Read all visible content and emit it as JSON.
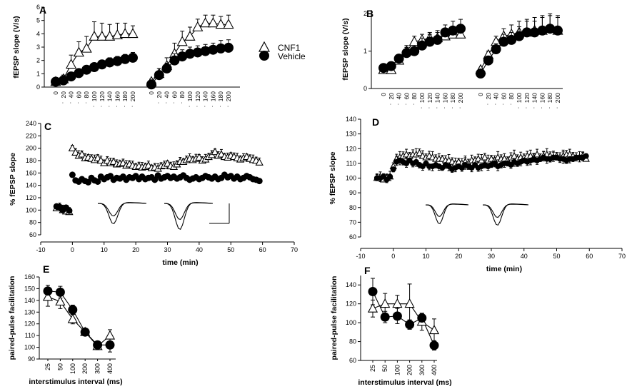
{
  "figure": {
    "legend": {
      "cnf1": "CNF1",
      "vehicle": "Vehicle"
    }
  },
  "chart_data": [
    {
      "panel": "A",
      "type": "line",
      "ylabel": "fEPSP slope (V/s)",
      "ylim": [
        0,
        6
      ],
      "yticks": [
        0,
        1,
        2,
        3,
        4,
        5,
        6
      ],
      "x_ticklabels": [
        "0",
        "20",
        "40",
        "60",
        "80",
        "100",
        "120",
        "140",
        "160",
        "180",
        "200"
      ],
      "groups": [
        {
          "series": [
            {
              "name": "CNF1",
              "values": [
                0.4,
                0.6,
                1.7,
                2.6,
                2.9,
                3.8,
                3.8,
                3.8,
                3.9,
                4.0,
                4.0
              ],
              "errors": [
                0.15,
                0.3,
                0.7,
                0.8,
                0.9,
                1.1,
                1.0,
                0.9,
                0.9,
                0.8,
                0.6
              ]
            },
            {
              "name": "Vehicle",
              "values": [
                0.4,
                0.5,
                0.8,
                1.05,
                1.3,
                1.5,
                1.7,
                1.85,
                1.95,
                2.1,
                2.2
              ],
              "errors": [
                0.1,
                0.15,
                0.2,
                0.25,
                0.3,
                0.3,
                0.3,
                0.35,
                0.35,
                0.35,
                0.4
              ]
            }
          ]
        },
        {
          "series": [
            {
              "name": "CNF1",
              "values": [
                0.4,
                1.0,
                1.6,
                2.5,
                3.4,
                3.8,
                4.5,
                4.8,
                4.8,
                4.7,
                4.7
              ],
              "errors": [
                0.2,
                0.4,
                0.6,
                0.8,
                0.8,
                0.7,
                0.6,
                0.6,
                0.6,
                0.6,
                0.7
              ]
            },
            {
              "name": "Vehicle",
              "values": [
                0.2,
                0.9,
                1.4,
                2.0,
                2.3,
                2.5,
                2.6,
                2.7,
                2.8,
                2.9,
                2.95
              ],
              "errors": [
                0.1,
                0.3,
                0.4,
                0.5,
                0.5,
                0.5,
                0.5,
                0.5,
                0.5,
                0.6,
                0.6
              ]
            }
          ]
        }
      ]
    },
    {
      "panel": "B",
      "type": "line",
      "ylabel": "fEPSP slope (V/s)",
      "ylim": [
        0,
        2.1
      ],
      "yticks": [
        0,
        1,
        2
      ],
      "x_ticklabels": [
        "0",
        "20",
        "40",
        "60",
        "80",
        "100",
        "120",
        "140",
        "160",
        "180",
        "200"
      ],
      "groups": [
        {
          "series": [
            {
              "name": "CNF1",
              "values": [
                0.5,
                0.5,
                0.75,
                1.0,
                1.25,
                1.3,
                1.35,
                1.35,
                1.4,
                1.45,
                1.45
              ],
              "errors": [
                0.05,
                0.1,
                0.1,
                0.15,
                0.15,
                0.15,
                0.15,
                0.2,
                0.2,
                0.2,
                0.2
              ]
            },
            {
              "name": "Vehicle",
              "values": [
                0.55,
                0.6,
                0.8,
                0.95,
                1.0,
                1.15,
                1.25,
                1.3,
                1.5,
                1.55,
                1.6
              ],
              "errors": [
                0.05,
                0.1,
                0.1,
                0.15,
                0.15,
                0.2,
                0.2,
                0.2,
                0.2,
                0.25,
                0.25
              ]
            }
          ]
        },
        {
          "series": [
            {
              "name": "CNF1",
              "values": [
                0.5,
                0.9,
                1.25,
                1.4,
                1.45,
                1.5,
                1.5,
                1.55,
                1.55,
                1.6,
                1.55
              ],
              "errors": [
                0.05,
                0.1,
                0.15,
                0.2,
                0.25,
                0.3,
                0.35,
                0.35,
                0.4,
                0.4,
                0.4
              ]
            },
            {
              "name": "Vehicle",
              "values": [
                0.4,
                0.75,
                1.05,
                1.25,
                1.3,
                1.4,
                1.5,
                1.5,
                1.55,
                1.6,
                1.55
              ],
              "errors": [
                0.05,
                0.1,
                0.15,
                0.2,
                0.2,
                0.25,
                0.3,
                0.3,
                0.35,
                0.35,
                0.35
              ]
            }
          ]
        }
      ]
    },
    {
      "panel": "C",
      "type": "scatter",
      "xlabel": "time (min)",
      "ylabel": "% fEPSP slope",
      "xlim": [
        -10,
        70
      ],
      "xticks": [
        -10,
        0,
        10,
        20,
        30,
        40,
        50,
        60,
        70
      ],
      "ylim": [
        60,
        240
      ],
      "yticks": [
        60,
        80,
        100,
        120,
        140,
        160,
        180,
        200,
        220,
        240
      ],
      "series": [
        {
          "name": "CNF1",
          "x": [
            -5,
            -4,
            -3,
            -2,
            -1,
            0,
            1,
            2,
            3,
            4,
            5,
            6,
            7,
            8,
            9,
            10,
            11,
            12,
            13,
            14,
            15,
            16,
            17,
            18,
            19,
            20,
            21,
            22,
            23,
            24,
            25,
            26,
            27,
            28,
            29,
            30,
            31,
            32,
            33,
            34,
            35,
            36,
            37,
            38,
            39,
            40,
            41,
            42,
            43,
            44,
            45,
            46,
            47,
            48,
            49,
            50,
            51,
            52,
            53,
            54,
            55,
            56,
            57,
            58,
            59
          ],
          "y": [
            103,
            105,
            100,
            98,
            97,
            200,
            193,
            188,
            190,
            184,
            185,
            183,
            181,
            184,
            180,
            176,
            180,
            176,
            178,
            174,
            175,
            176,
            172,
            174,
            172,
            170,
            171,
            169,
            170,
            172,
            168,
            169,
            167,
            171,
            172,
            175,
            171,
            170,
            174,
            178,
            178,
            181,
            183,
            181,
            183,
            185,
            180,
            182,
            186,
            189,
            194,
            188,
            190,
            186,
            185,
            188,
            186,
            184,
            182,
            184,
            186,
            183,
            181,
            180,
            177
          ],
          "err": 8
        },
        {
          "name": "Vehicle",
          "x": [
            -5,
            -4,
            -3,
            -2,
            -1,
            0,
            1,
            2,
            3,
            4,
            5,
            6,
            7,
            8,
            9,
            10,
            11,
            12,
            13,
            14,
            15,
            16,
            17,
            18,
            19,
            20,
            21,
            22,
            23,
            24,
            25,
            26,
            27,
            28,
            29,
            30,
            31,
            32,
            33,
            34,
            35,
            36,
            37,
            38,
            39,
            40,
            41,
            42,
            43,
            44,
            45,
            46,
            47,
            48,
            49,
            50,
            51,
            52,
            53,
            54,
            55,
            56,
            57,
            58,
            59
          ],
          "y": [
            106,
            105,
            100,
            104,
            99,
            157,
            148,
            146,
            150,
            147,
            145,
            152,
            148,
            146,
            154,
            150,
            153,
            155,
            149,
            152,
            151,
            154,
            149,
            153,
            152,
            155,
            150,
            154,
            150,
            152,
            153,
            149,
            156,
            151,
            153,
            155,
            152,
            154,
            151,
            153,
            156,
            152,
            149,
            151,
            153,
            150,
            152,
            155,
            153,
            151,
            154,
            150,
            152,
            157,
            153,
            155,
            151,
            154,
            150,
            152,
            155,
            153,
            150,
            149,
            147
          ],
          "err": 5
        }
      ]
    },
    {
      "panel": "D",
      "type": "scatter",
      "xlabel": "time (min)",
      "ylabel": "% fEPSP slope",
      "xlim": [
        -10,
        70
      ],
      "xticks": [
        -10,
        0,
        10,
        20,
        30,
        40,
        50,
        60,
        70
      ],
      "ylim": [
        60,
        140
      ],
      "yticks": [
        60,
        70,
        80,
        90,
        100,
        110,
        120,
        130,
        140
      ],
      "series": [
        {
          "name": "CNF1",
          "x": [
            -5,
            -4,
            -3,
            -2,
            -1,
            0,
            1,
            2,
            3,
            4,
            5,
            6,
            7,
            8,
            9,
            10,
            11,
            12,
            13,
            14,
            15,
            16,
            17,
            18,
            19,
            20,
            21,
            22,
            23,
            24,
            25,
            26,
            27,
            28,
            29,
            30,
            31,
            32,
            33,
            34,
            35,
            36,
            37,
            38,
            39,
            40,
            41,
            42,
            43,
            44,
            45,
            46,
            47,
            48,
            49,
            50,
            51,
            52,
            53,
            54,
            55,
            56,
            57,
            58,
            59
          ],
          "y": [
            100,
            101,
            99,
            100,
            101,
            108,
            113,
            114,
            115,
            116,
            115,
            116,
            116,
            117,
            115,
            114,
            115,
            114,
            113,
            113,
            113,
            112,
            112,
            111,
            110,
            111,
            110,
            111,
            110,
            112,
            112,
            113,
            112,
            114,
            112,
            113,
            112,
            114,
            113,
            113,
            112,
            114,
            115,
            113,
            114,
            114,
            115,
            115,
            114,
            116,
            114,
            115,
            116,
            115,
            114,
            115,
            114,
            115,
            116,
            116,
            115,
            114,
            114,
            115,
            113
          ],
          "err": 4
        },
        {
          "name": "Vehicle",
          "x": [
            -5,
            -4,
            -3,
            -2,
            -1,
            0,
            1,
            2,
            3,
            4,
            5,
            6,
            7,
            8,
            9,
            10,
            11,
            12,
            13,
            14,
            15,
            16,
            17,
            18,
            19,
            20,
            21,
            22,
            23,
            24,
            25,
            26,
            27,
            28,
            29,
            30,
            31,
            32,
            33,
            34,
            35,
            36,
            37,
            38,
            39,
            40,
            41,
            42,
            43,
            44,
            45,
            46,
            47,
            48,
            49,
            50,
            51,
            52,
            53,
            54,
            55,
            56,
            57,
            58,
            59
          ],
          "y": [
            100,
            100,
            101,
            99,
            101,
            106,
            111,
            112,
            111,
            110,
            112,
            110,
            111,
            109,
            108,
            110,
            108,
            108,
            109,
            108,
            107,
            109,
            108,
            106,
            107,
            108,
            107,
            109,
            108,
            107,
            109,
            107,
            108,
            109,
            108,
            109,
            110,
            108,
            109,
            110,
            110,
            109,
            111,
            110,
            111,
            112,
            111,
            112,
            113,
            112,
            113,
            114,
            113,
            113,
            114,
            114,
            113,
            113,
            112,
            113,
            113,
            114,
            114,
            114,
            115
          ],
          "err": 6
        }
      ]
    },
    {
      "panel": "E",
      "type": "line",
      "xlabel": "interstimulus interval (ms)",
      "ylabel": "paired-pulse facilitation",
      "categories": [
        "25",
        "50",
        "100",
        "200",
        "300",
        "400"
      ],
      "ylim": [
        90,
        160
      ],
      "yticks": [
        90,
        100,
        110,
        120,
        130,
        140,
        150,
        160
      ],
      "series": [
        {
          "name": "CNF1",
          "values": [
            143,
            139,
            124,
            113,
            101,
            110
          ],
          "errors": [
            8,
            6,
            4,
            3,
            3,
            5
          ]
        },
        {
          "name": "Vehicle",
          "values": [
            148,
            147,
            132,
            113,
            102,
            102
          ],
          "errors": [
            5,
            5,
            4,
            3,
            3,
            6
          ]
        }
      ]
    },
    {
      "panel": "F",
      "type": "line",
      "xlabel": "interstimulus interval (ms)",
      "ylabel": "paired-pulse facilitation",
      "categories": [
        "25",
        "50",
        "100",
        "200",
        "300",
        "400"
      ],
      "ylim": [
        60,
        150
      ],
      "yticks": [
        60,
        80,
        100,
        120,
        140
      ],
      "series": [
        {
          "name": "CNF1",
          "values": [
            115,
            120,
            120,
            120,
            101,
            92
          ],
          "errors": [
            9,
            11,
            9,
            21,
            9,
            12
          ]
        },
        {
          "name": "Vehicle",
          "values": [
            133,
            106,
            107,
            98,
            105,
            76
          ],
          "errors": [
            14,
            6,
            8,
            5,
            5,
            5
          ]
        }
      ]
    }
  ]
}
